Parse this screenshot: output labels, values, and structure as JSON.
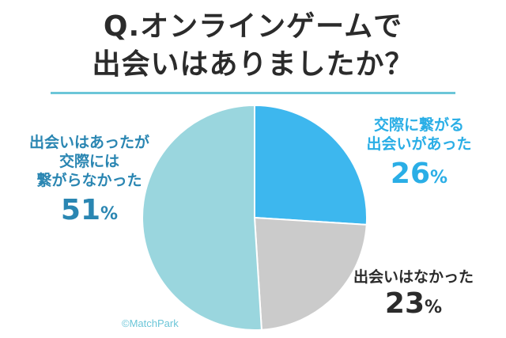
{
  "title_line1": "Q.オンラインゲームで",
  "title_line2": "出会いはありましたか？",
  "credit": "©MatchPark",
  "chart_data": {
    "type": "pie",
    "title": "Q.オンラインゲームで出会いはありましたか？",
    "slices": [
      {
        "label_lines": [
          "交際に繋がる",
          "出会いがあった"
        ],
        "value": 26,
        "unit": "%",
        "color": "#3db7ee"
      },
      {
        "label_lines": [
          "出会いはなかった"
        ],
        "value": 23,
        "unit": "%",
        "color": "#cbcbcb"
      },
      {
        "label_lines": [
          "出会いはあったが",
          "交際には",
          "繋がらなかった"
        ],
        "value": 51,
        "unit": "%",
        "color": "#9ad6de"
      }
    ]
  }
}
